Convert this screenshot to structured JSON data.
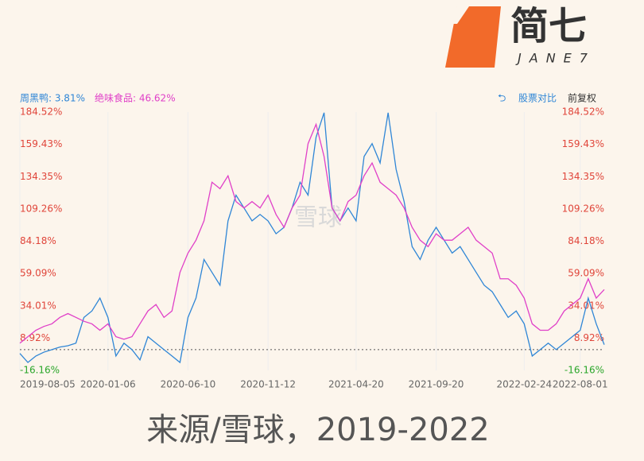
{
  "logo": {
    "text": "简七",
    "sub": "JANE7"
  },
  "controls": {
    "compare": "股票对比",
    "adjust": "前复权"
  },
  "watermark": "雪球",
  "caption": "来源/雪球，2019-2022",
  "chart_data": {
    "type": "line",
    "categories": [
      "2019-08-05",
      null,
      null,
      null,
      null,
      null,
      null,
      null,
      null,
      null,
      null,
      "2020-01-06",
      null,
      null,
      null,
      null,
      null,
      null,
      null,
      null,
      null,
      "2020-06-10",
      null,
      null,
      null,
      null,
      null,
      null,
      null,
      null,
      null,
      "2020-11-12",
      null,
      null,
      null,
      null,
      null,
      null,
      null,
      null,
      null,
      null,
      "2021-04-20",
      null,
      null,
      null,
      null,
      null,
      null,
      null,
      null,
      null,
      "2021-09-20",
      null,
      null,
      null,
      null,
      null,
      null,
      null,
      null,
      null,
      null,
      "2022-02-24",
      null,
      null,
      null,
      null,
      null,
      null,
      "2022-08-01",
      null,
      null,
      null
    ],
    "series": [
      {
        "name": "周黑鸭: 3.81%",
        "color": "#2f86d6",
        "values": [
          -3,
          -10,
          -5,
          -2,
          0,
          2,
          3,
          5,
          25,
          30,
          40,
          25,
          -5,
          5,
          0,
          -8,
          10,
          5,
          0,
          -5,
          -10,
          25,
          40,
          70,
          60,
          50,
          100,
          120,
          110,
          100,
          105,
          100,
          90,
          95,
          110,
          130,
          120,
          165,
          184,
          110,
          100,
          110,
          100,
          150,
          160,
          145,
          184,
          140,
          115,
          80,
          70,
          85,
          95,
          85,
          75,
          80,
          70,
          60,
          50,
          45,
          35,
          25,
          30,
          20,
          -5,
          0,
          5,
          0,
          5,
          10,
          15,
          40,
          20,
          3.81
        ]
      },
      {
        "name": "绝味食品: 46.62%",
        "color": "#e040c8",
        "values": [
          5,
          10,
          15,
          18,
          20,
          25,
          28,
          25,
          22,
          20,
          15,
          20,
          10,
          8,
          10,
          20,
          30,
          35,
          25,
          30,
          60,
          75,
          85,
          100,
          130,
          125,
          135,
          115,
          110,
          115,
          110,
          120,
          105,
          95,
          110,
          120,
          160,
          175,
          150,
          110,
          100,
          115,
          120,
          135,
          145,
          130,
          125,
          120,
          110,
          95,
          85,
          80,
          90,
          85,
          85,
          90,
          95,
          85,
          80,
          75,
          55,
          55,
          50,
          40,
          20,
          15,
          15,
          20,
          30,
          35,
          40,
          55,
          40,
          46.62
        ]
      }
    ],
    "ylim": [
      -16.16,
      184.52
    ],
    "yticks": [
      {
        "value": -16.16,
        "label": "-16.16%"
      },
      {
        "value": 8.92,
        "label": "8.92%"
      },
      {
        "value": 34.01,
        "label": "34.01%"
      },
      {
        "value": 59.09,
        "label": "59.09%"
      },
      {
        "value": 84.18,
        "label": "84.18%"
      },
      {
        "value": 109.26,
        "label": "109.26%"
      },
      {
        "value": 134.35,
        "label": "134.35%"
      },
      {
        "value": 159.43,
        "label": "159.43%"
      },
      {
        "value": 184.52,
        "label": "184.52%"
      }
    ],
    "grid": "vertical"
  }
}
